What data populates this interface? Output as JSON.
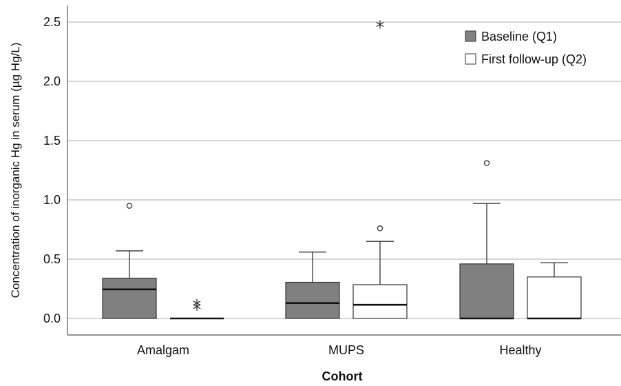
{
  "chart_data": {
    "type": "box",
    "title": "",
    "xlabel": "Cohort",
    "ylabel": "Concentration of inorganic Hg in serum (µg Hg/L)",
    "ylim": [
      -0.14,
      2.6
    ],
    "yticks": [
      "0.0",
      "0.5",
      "1.0",
      "1.5",
      "2.0",
      "2.5"
    ],
    "grid": "horizontal",
    "legend_position": "top-right",
    "categories": [
      "Amalgam",
      "MUPS",
      "Healthy"
    ],
    "series": [
      {
        "name": "Baseline (Q1)",
        "color": "#808080",
        "boxes": [
          {
            "category": "Amalgam",
            "min": 0.0,
            "q1": 0.0,
            "median": 0.245,
            "q3": 0.34,
            "max": 0.57,
            "outliers": [
              {
                "value": 0.95,
                "symbol": "circle"
              }
            ]
          },
          {
            "category": "MUPS",
            "min": 0.0,
            "q1": 0.0,
            "median": 0.13,
            "q3": 0.305,
            "max": 0.56,
            "outliers": []
          },
          {
            "category": "Healthy",
            "min": 0.0,
            "q1": 0.0,
            "median": 0.0,
            "q3": 0.46,
            "max": 0.97,
            "outliers": [
              {
                "value": 1.31,
                "symbol": "circle"
              }
            ]
          }
        ]
      },
      {
        "name": "First follow-up (Q2)",
        "color": "#ffffff",
        "boxes": [
          {
            "category": "Amalgam",
            "min": 0.0,
            "q1": 0.0,
            "median": 0.0,
            "q3": 0.0,
            "max": 0.0,
            "outliers": [
              {
                "value": 0.13,
                "symbol": "star"
              },
              {
                "value": 0.1,
                "symbol": "star"
              }
            ]
          },
          {
            "category": "MUPS",
            "min": 0.0,
            "q1": 0.0,
            "median": 0.115,
            "q3": 0.285,
            "max": 0.65,
            "outliers": [
              {
                "value": 0.76,
                "symbol": "circle"
              },
              {
                "value": 2.48,
                "symbol": "star"
              }
            ]
          },
          {
            "category": "Healthy",
            "min": 0.0,
            "q1": 0.0,
            "median": 0.0,
            "q3": 0.35,
            "max": 0.47,
            "outliers": []
          }
        ]
      }
    ]
  }
}
